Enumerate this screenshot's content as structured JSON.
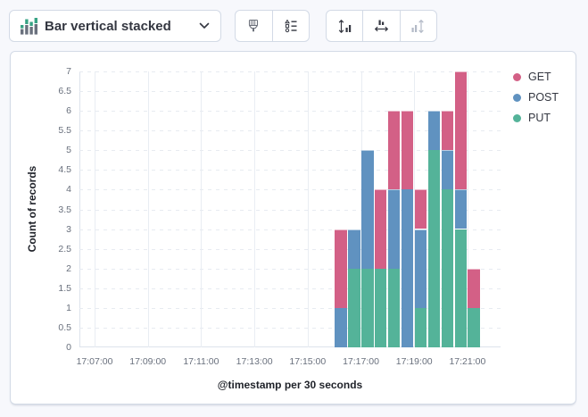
{
  "toolbar": {
    "chart_type_selector": {
      "label": "Bar vertical stacked",
      "icon": "bar-vertical-stacked-icon",
      "chevron": "chevron-down-icon"
    },
    "style_buttons": [
      {
        "icon": "paint-brush-icon"
      },
      {
        "icon": "legend-values-icon"
      }
    ],
    "axis_buttons": [
      {
        "icon": "axis-left-icon",
        "disabled": false
      },
      {
        "icon": "axis-bottom-icon",
        "disabled": false
      },
      {
        "icon": "axis-right-icon",
        "disabled": true
      }
    ]
  },
  "colors": {
    "get": "#d36086",
    "post": "#6092c0",
    "put": "#54b399",
    "page_bg": "#f7f8fc",
    "panel_border": "#d3dae6",
    "icon_green": "#37a384",
    "icon_gray": "#69707d"
  },
  "chart_data": {
    "type": "bar",
    "stacked": true,
    "orientation": "vertical",
    "title": "",
    "xlabel": "@timestamp per 30 seconds",
    "ylabel": "Count of records",
    "ylim": [
      0,
      7
    ],
    "y_tick_step": 0.5,
    "grid": true,
    "bucket_seconds": 30,
    "x_axis_labels": [
      "17:07:00",
      "17:09:00",
      "17:11:00",
      "17:13:00",
      "17:15:00",
      "17:17:00",
      "17:19:00",
      "17:21:00"
    ],
    "x": [
      "17:16:00",
      "17:16:30",
      "17:17:00",
      "17:17:30",
      "17:18:00",
      "17:18:30",
      "17:19:00",
      "17:19:30",
      "17:20:00",
      "17:20:30",
      "17:21:00"
    ],
    "series": [
      {
        "name": "GET",
        "color": "#d36086",
        "values": [
          2,
          0,
          0,
          2,
          2,
          2,
          1,
          0,
          1,
          3,
          1
        ]
      },
      {
        "name": "POST",
        "color": "#6092c0",
        "values": [
          1,
          1,
          3,
          0,
          2,
          4,
          2,
          1,
          1,
          1,
          0
        ]
      },
      {
        "name": "PUT",
        "color": "#54b399",
        "values": [
          0,
          2,
          2,
          2,
          2,
          0,
          1,
          5,
          4,
          3,
          1
        ]
      }
    ],
    "stack_order_bottom_to_top": [
      "PUT",
      "POST",
      "GET"
    ],
    "legend": {
      "position": "right",
      "items": [
        "GET",
        "POST",
        "PUT"
      ]
    }
  }
}
